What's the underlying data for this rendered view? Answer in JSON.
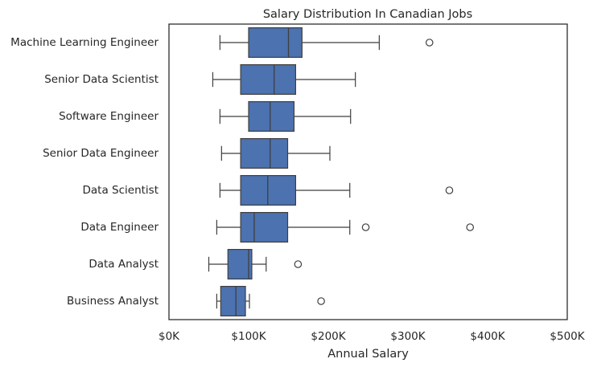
{
  "chart_data": {
    "type": "boxplot",
    "title": "Salary Distribution In Canadian Jobs",
    "xlabel": "Annual Salary",
    "ylabel": "",
    "xlim": [
      0,
      500000
    ],
    "x_ticks": [
      0,
      100000,
      200000,
      300000,
      400000,
      500000
    ],
    "x_tick_labels": [
      "$0K",
      "$100K",
      "$200K",
      "$300K",
      "$400K",
      "$500K"
    ],
    "orientation": "horizontal",
    "grid": false,
    "categories": [
      "Machine Learning Engineer",
      "Senior Data Scientist",
      "Software Engineer",
      "Senior Data Engineer",
      "Data Scientist",
      "Data Engineer",
      "Data Analyst",
      "Business Analyst"
    ],
    "boxes": [
      {
        "whisker_low": 64000,
        "q1": 100000,
        "median": 150000,
        "q3": 167000,
        "whisker_high": 264000,
        "outliers": [
          327000
        ]
      },
      {
        "whisker_low": 55000,
        "q1": 90000,
        "median": 132000,
        "q3": 159000,
        "whisker_high": 234000,
        "outliers": []
      },
      {
        "whisker_low": 64000,
        "q1": 100000,
        "median": 127000,
        "q3": 157000,
        "whisker_high": 228000,
        "outliers": []
      },
      {
        "whisker_low": 66000,
        "q1": 90000,
        "median": 127000,
        "q3": 149000,
        "whisker_high": 202000,
        "outliers": []
      },
      {
        "whisker_low": 64000,
        "q1": 90000,
        "median": 124000,
        "q3": 159000,
        "whisker_high": 227000,
        "outliers": [
          352000
        ]
      },
      {
        "whisker_low": 60000,
        "q1": 90000,
        "median": 107000,
        "q3": 149000,
        "whisker_high": 227000,
        "outliers": [
          247000,
          378000
        ]
      },
      {
        "whisker_low": 50000,
        "q1": 74000,
        "median": 100000,
        "q3": 104000,
        "whisker_high": 122000,
        "outliers": [
          162000
        ]
      },
      {
        "whisker_low": 60000,
        "q1": 65000,
        "median": 84000,
        "q3": 96000,
        "whisker_high": 101000,
        "outliers": [
          191000
        ]
      }
    ],
    "colors": {
      "box_fill": "#4c72b0",
      "line": "#3f3f3f",
      "axis": "#262626",
      "background": "#ffffff"
    }
  }
}
